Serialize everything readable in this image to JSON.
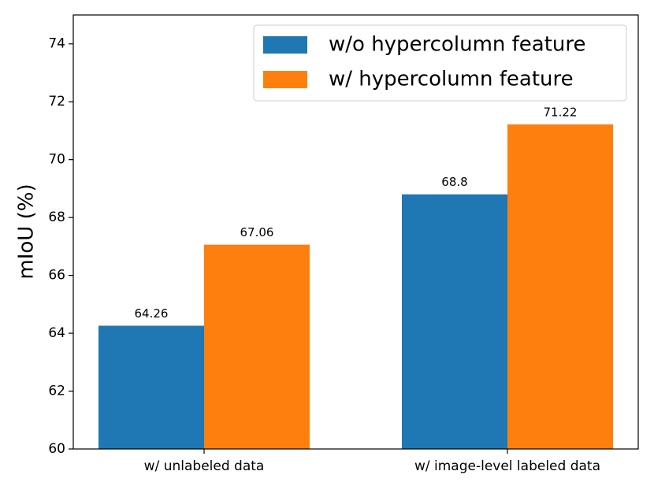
{
  "chart_data": {
    "type": "bar",
    "ylabel": "mIoU (%)",
    "categories": [
      "w/ unlabeled data",
      "w/ image-level labeled data"
    ],
    "series": [
      {
        "name": "w/o hypercolumn feature",
        "color": "#1f77b4",
        "values": [
          64.26,
          68.8
        ]
      },
      {
        "name": "w/ hypercolumn feature",
        "color": "#ff7f0e",
        "values": [
          67.06,
          71.22
        ]
      }
    ],
    "ylim": [
      60,
      75
    ],
    "yticks": [
      60,
      62,
      64,
      66,
      68,
      70,
      72,
      74
    ],
    "legend": "upper right"
  }
}
